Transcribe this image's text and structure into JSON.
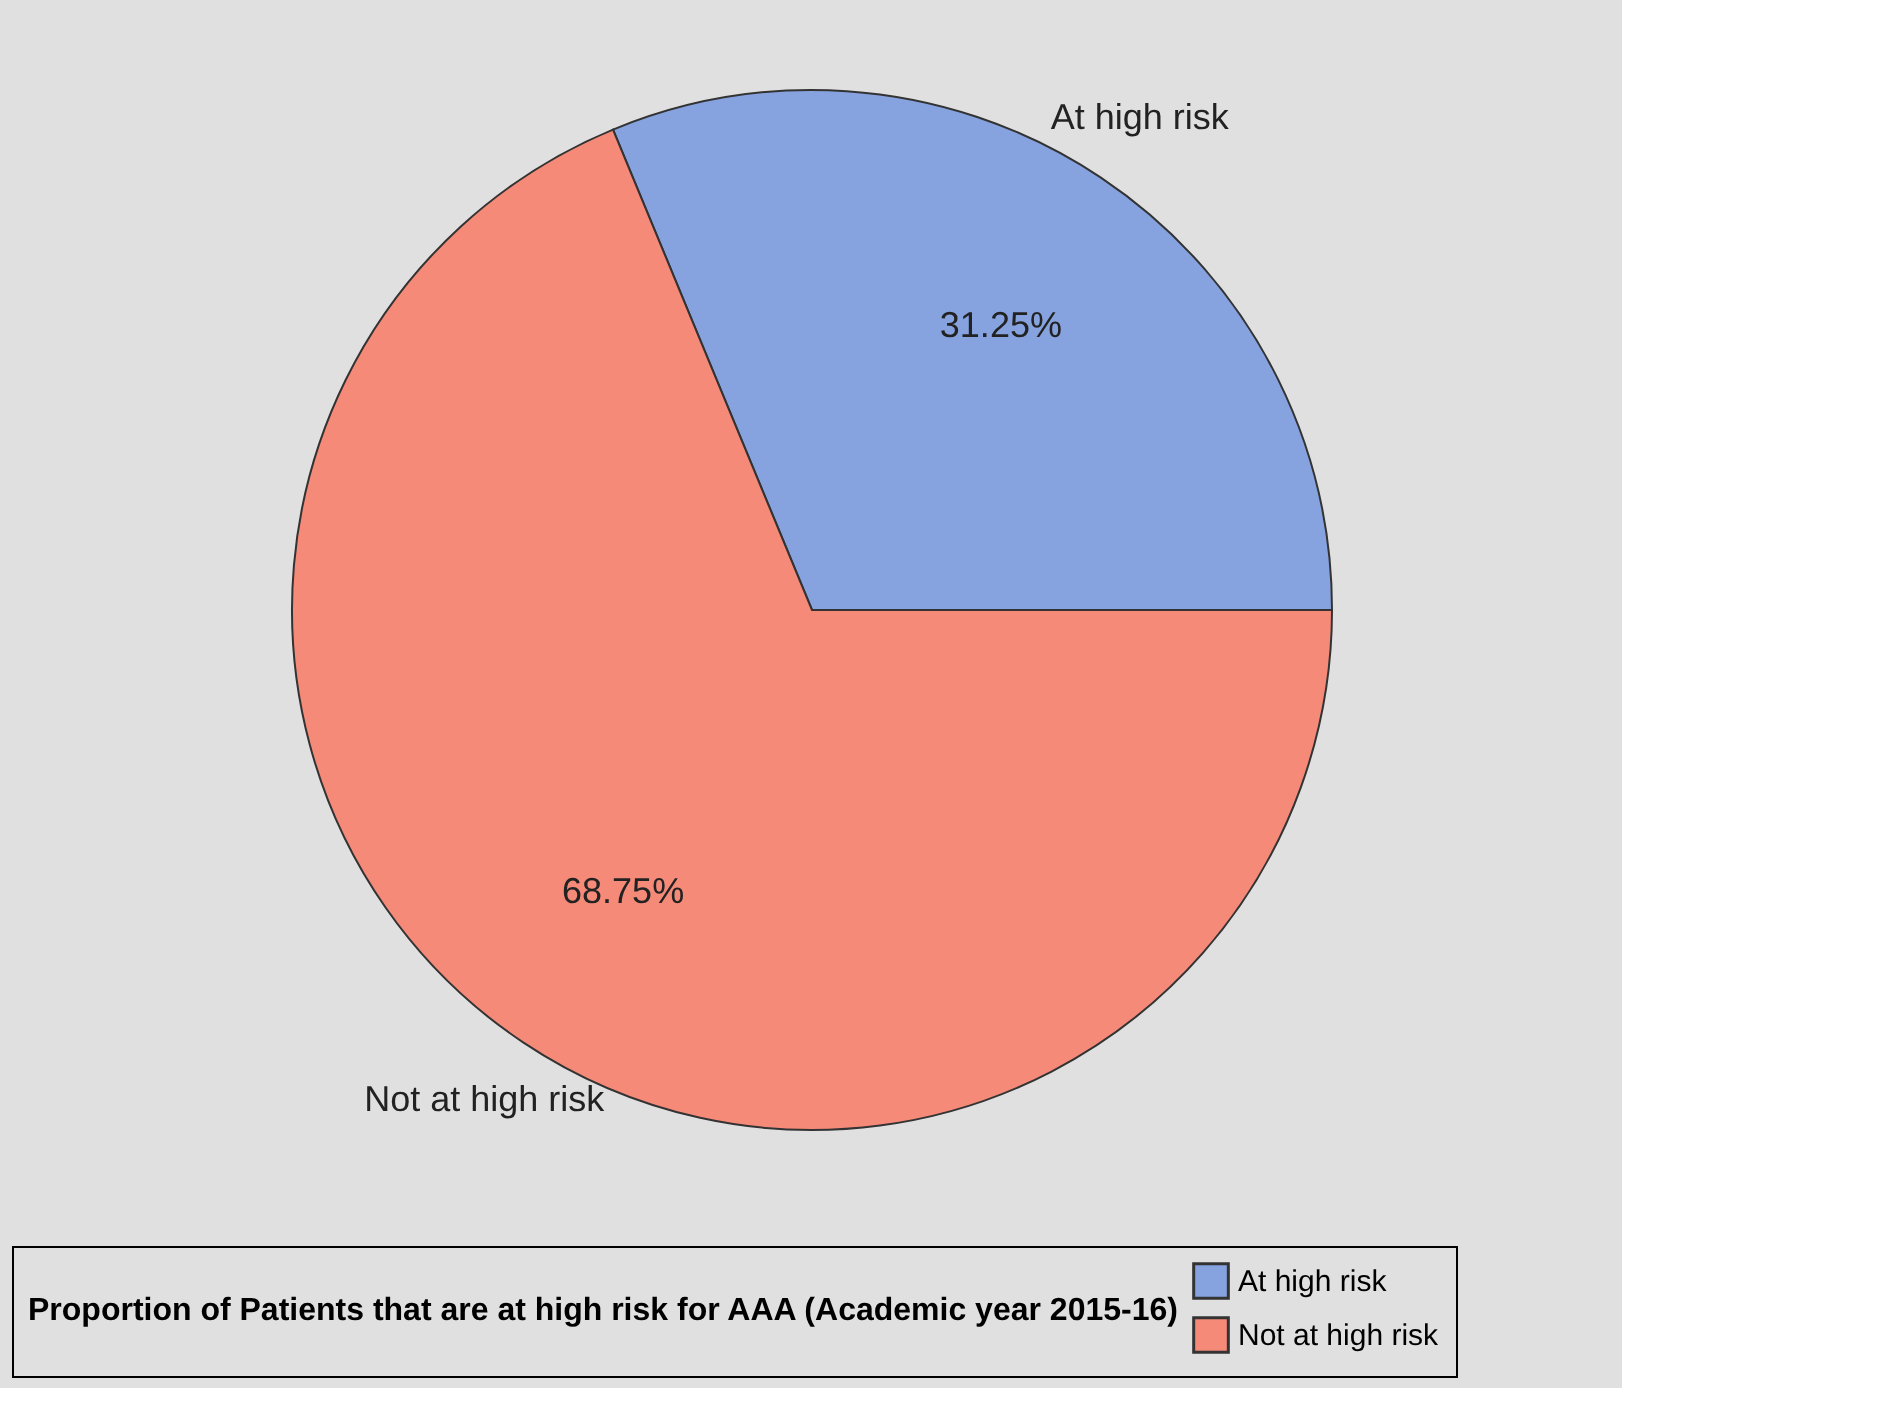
{
  "chart_data": {
    "type": "pie",
    "categories": [
      "At high risk",
      "Not at high risk"
    ],
    "values": [
      31.25,
      68.75
    ],
    "colors": [
      "#86a3e0",
      "#f58a79"
    ],
    "value_labels": [
      "31.25%",
      "68.75%"
    ],
    "legend_title": "Proportion of Patients that are at high risk for AAA (Academic year 2015-16)",
    "legend": "bottom"
  }
}
